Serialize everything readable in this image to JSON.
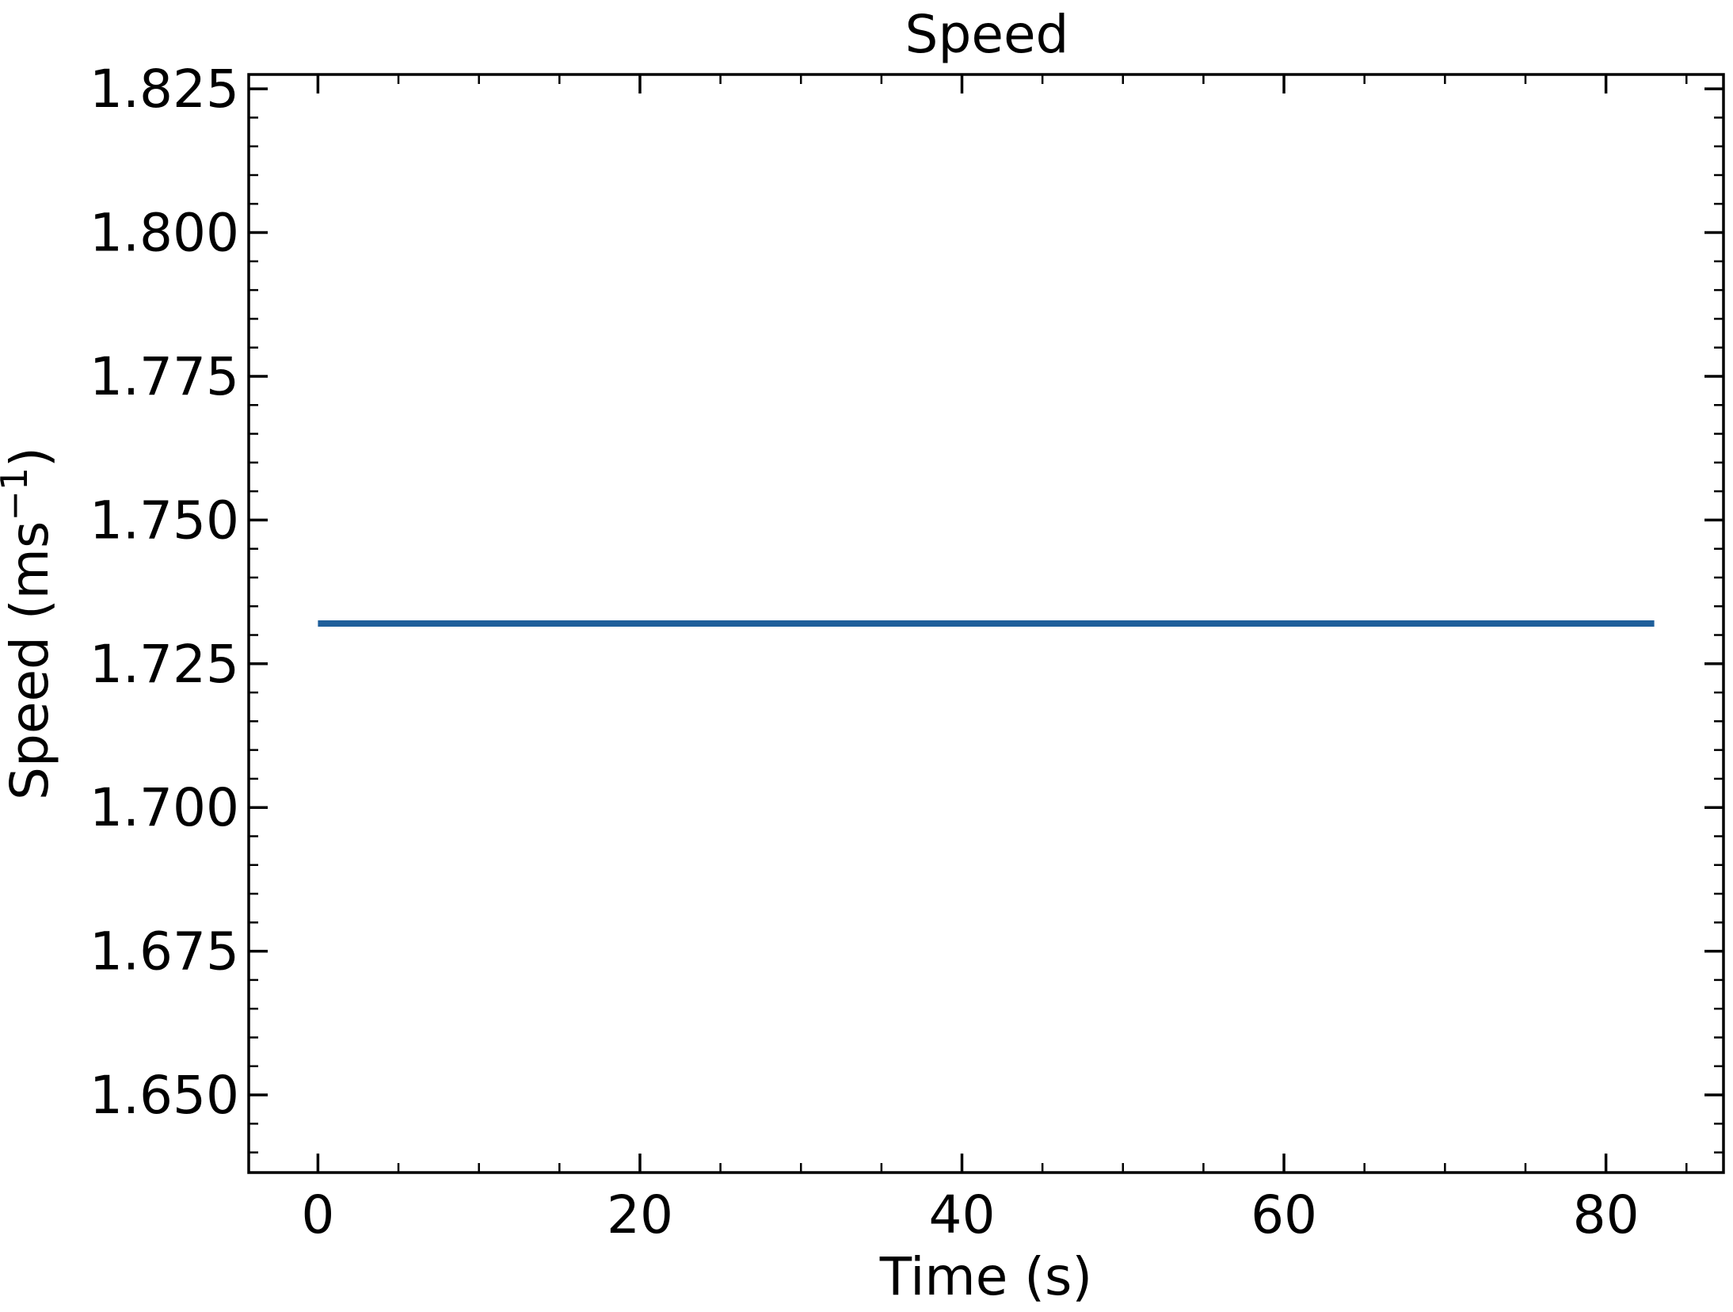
{
  "chart_data": {
    "type": "line",
    "title": "Speed",
    "xlabel": "Time (s)",
    "ylabel": {
      "text": "Speed (ms",
      "superscript": "−1",
      "suffix": ")"
    },
    "xlim": [
      -4.3,
      87.3
    ],
    "ylim": [
      1.6365,
      1.8275
    ],
    "xticks": [
      0,
      20,
      40,
      60,
      80
    ],
    "xtick_labels": [
      "0",
      "20",
      "40",
      "60",
      "80"
    ],
    "x_minor_step": 5,
    "yticks": [
      1.65,
      1.675,
      1.7,
      1.725,
      1.75,
      1.775,
      1.8,
      1.825
    ],
    "ytick_labels": [
      "1.650",
      "1.675",
      "1.700",
      "1.725",
      "1.750",
      "1.775",
      "1.800",
      "1.825"
    ],
    "y_minor_step": 0.005,
    "grid": false,
    "ticks_direction": "in",
    "ticks_on_all_sides": true,
    "series": [
      {
        "color": "#1f5f9b",
        "x": [
          0,
          83
        ],
        "y": [
          1.732,
          1.732
        ]
      }
    ]
  }
}
